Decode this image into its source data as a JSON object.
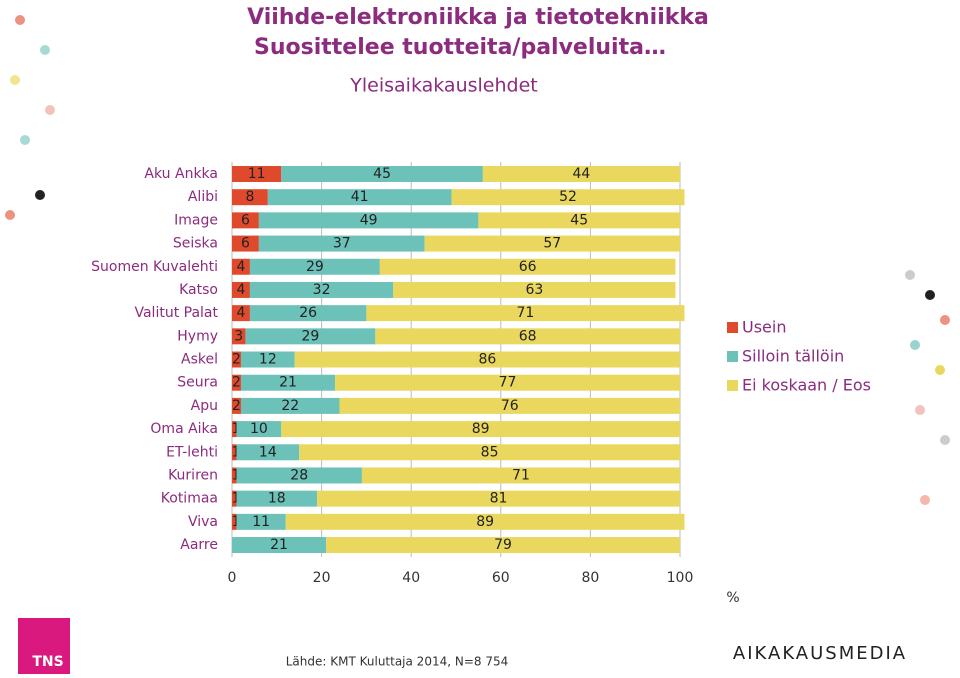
{
  "chart_data": {
    "type": "stacked_barh",
    "title": "Viihde-elektroniikka ja tietotekniikka",
    "subtitle": "Suosittelee tuotteita/palveluita…",
    "subtitle2": "Yleisaikakauslehdet",
    "categories": [
      "Aku Ankka",
      "Alibi",
      "Image",
      "Seiska",
      "Suomen Kuvalehti",
      "Katso",
      "Valitut Palat",
      "Hymy",
      "Askel",
      "Seura",
      "Apu",
      "Oma Aika",
      "ET-lehti",
      "Kuriren",
      "Kotimaa",
      "Viva",
      "Aarre"
    ],
    "series": [
      {
        "name": "Usein",
        "color": "#e04a2c",
        "values": [
          11,
          8,
          6,
          6,
          4,
          4,
          4,
          3,
          2,
          2,
          2,
          1,
          1,
          1,
          1,
          1,
          0
        ]
      },
      {
        "name": "Silloin tällöin",
        "color": "#6cc1b8",
        "values": [
          45,
          41,
          49,
          37,
          29,
          32,
          26,
          29,
          12,
          21,
          22,
          10,
          14,
          28,
          18,
          11,
          21
        ]
      },
      {
        "name": "Ei koskaan / Eos",
        "color": "#ead85e",
        "values": [
          44,
          52,
          45,
          57,
          66,
          63,
          71,
          68,
          86,
          77,
          76,
          89,
          85,
          71,
          81,
          89,
          79
        ]
      }
    ],
    "xlim": [
      0,
      100
    ],
    "xticks": [
      0,
      20,
      40,
      60,
      80,
      100
    ],
    "grid": true,
    "xlabel": "%",
    "source": "Lähde: KMT Kuluttaja 2014, N=8 754"
  },
  "logos": {
    "left": "TNS",
    "right": "AIKAKAUSMEDIA"
  }
}
